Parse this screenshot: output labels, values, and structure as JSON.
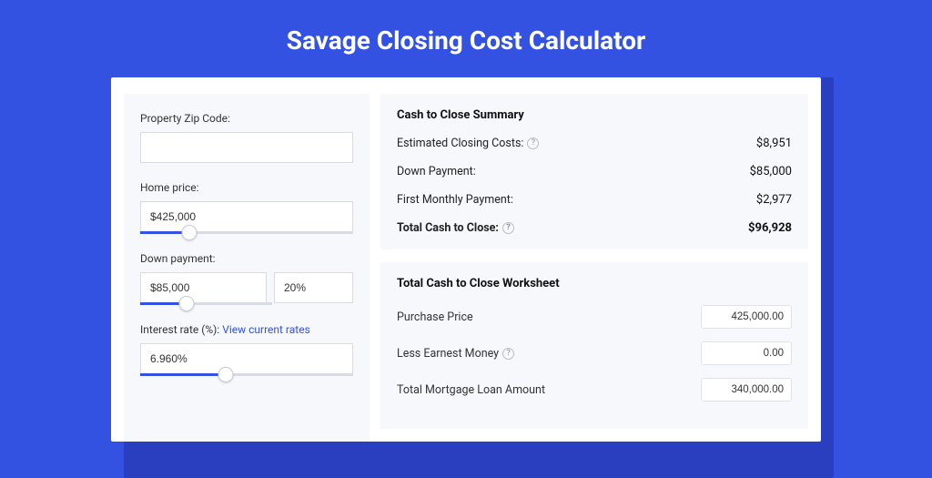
{
  "colors": {
    "page_bg": "#3452e1",
    "shadow": "#2a3fbf",
    "card_bg": "#ffffff",
    "panel_bg": "#f7f8fc",
    "border": "#d9dbe4",
    "accent": "#3452e1",
    "text": "#333333",
    "text_dark": "#111111"
  },
  "header": {
    "title": "Savage Closing Cost Calculator"
  },
  "inputs": {
    "zip_label": "Property Zip Code:",
    "zip_value": "",
    "home_price_label": "Home price:",
    "home_price_value": "$425,000",
    "home_price_slider_pct": 23,
    "down_payment_label": "Down payment:",
    "down_payment_value": "$85,000",
    "down_payment_pct_value": "20%",
    "down_payment_slider_pct": 35,
    "interest_label_prefix": "Interest rate (%): ",
    "interest_link": "View current rates",
    "interest_value": "6.960%",
    "interest_slider_pct": 40
  },
  "summary": {
    "title": "Cash to Close Summary",
    "rows": [
      {
        "label": "Estimated Closing Costs:",
        "help": true,
        "value": "$8,951",
        "bold": false
      },
      {
        "label": "Down Payment:",
        "help": false,
        "value": "$85,000",
        "bold": false
      },
      {
        "label": "First Monthly Payment:",
        "help": false,
        "value": "$2,977",
        "bold": false
      },
      {
        "label": "Total Cash to Close:",
        "help": true,
        "value": "$96,928",
        "bold": true
      }
    ]
  },
  "worksheet": {
    "title": "Total Cash to Close Worksheet",
    "rows": [
      {
        "label": "Purchase Price",
        "help": false,
        "value": "425,000.00"
      },
      {
        "label": "Less Earnest Money",
        "help": true,
        "value": "0.00"
      },
      {
        "label": "Total Mortgage Loan Amount",
        "help": false,
        "value": "340,000.00"
      }
    ]
  }
}
